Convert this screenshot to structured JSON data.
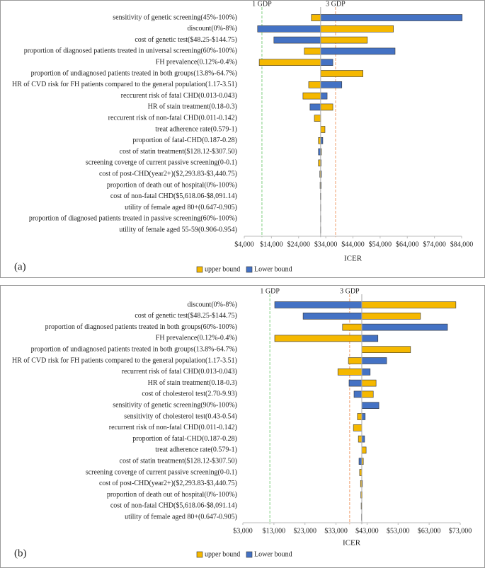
{
  "chart_data": [
    {
      "type": "tornado",
      "panel_label": "(a)",
      "xlabel": "ICER",
      "base_value": 32100,
      "categories": [
        "sensitivity of genetic screening(45%-100%)",
        "discount(0%-8%)",
        "cost of genetic test($48.25-$144.75)",
        "proportion of diagnosed patients treated in universal screening(60%-100%)",
        "FH prevalence(0.12%-0.4%)",
        "proportion of undiagnosed patients treated in both groups(13.8%-64.7%)",
        "HR of CVD risk for FH patients compared to the general population(1.17-3.51)",
        "reccurent risk of fatal CHD(0.013-0.043)",
        "HR of stain treatment(0.18-0.3)",
        "reccurent risk of non-fatal CHD(0.011-0.142)",
        "treat adherence rate(0.579-1)",
        "proportion of fatal-CHD(0.187-0.28)",
        "cost of statin treatment($128.12-$307.50)",
        "screening coverge of current passive screening(0-0.1)",
        "cost of post-CHD(year2+)($2,293.83-$3,440.75)",
        "proportion of death out of hospital(0%-100%)",
        "cost of non-fatal CHD($5,618.06-$8,091.14)",
        "utility of female aged 80+(0.647-0.905)",
        "proportion of diagnosed patients treated in passive screening(60%-100%)",
        "utility of female aged 55-59(0.906-0.954)"
      ],
      "series": [
        {
          "name": "upper bound",
          "color": "#f5b800",
          "values": [
            28700,
            58900,
            49300,
            26100,
            9500,
            47700,
            27700,
            25600,
            36600,
            29800,
            33700,
            31300,
            32400,
            31300,
            31800,
            31900,
            32000,
            32050,
            32050,
            32050
          ]
        },
        {
          "name": "Lower bound",
          "color": "#4472c4",
          "values": [
            84200,
            8900,
            14900,
            59500,
            36600,
            32100,
            39900,
            34500,
            28200,
            32100,
            32100,
            32900,
            31300,
            32300,
            32400,
            32300,
            32200,
            32150,
            32150,
            32150
          ]
        }
      ],
      "xlim": [
        4000,
        84000
      ],
      "xticks": [
        {
          "value": 4000,
          "label": "$4,000"
        },
        {
          "value": 14000,
          "label": "$14,000"
        },
        {
          "value": 24000,
          "label": "$24,000"
        },
        {
          "value": 34000,
          "label": "$34,000"
        },
        {
          "value": 44000,
          "label": "$44,000"
        },
        {
          "value": 54000,
          "label": "$54,000"
        },
        {
          "value": 64000,
          "label": "$64,000"
        },
        {
          "value": 74000,
          "label": "$74,000"
        },
        {
          "value": 84000,
          "label": "$84,000"
        }
      ],
      "reference_lines": [
        {
          "value": 10500,
          "label": "1 GDP",
          "color": "#7fcf7f"
        },
        {
          "value": 37600,
          "label": "3 GDP",
          "color": "#f0a070"
        }
      ]
    },
    {
      "type": "tornado",
      "panel_label": "(b)",
      "xlabel": "ICER",
      "base_value": 41300,
      "categories": [
        "discount(0%-8%)",
        "cost of genetic test($48.25-$144.75)",
        "proportion of diagnosed patients treated in both groups(60%-100%)",
        "FH prevalence(0.12%-0.4%)",
        "proportion of undiagnosed patients treated in both groups(13.8%-64.7%)",
        "HR of CVD risk for FH patients compared to the general population(1.17-3.51)",
        "recurrent risk of fatal CHD(0.013-0.043)",
        "HR of stain treatment(0.18-0.3)",
        "cost of cholesterol test(2.70-9.93)",
        "sensitivity of genetic screening(90%-100%)",
        "sensitivity of cholesterol test(0.43-0.54)",
        "recurrent risk of non-fatal CHD(0.011-0.142)",
        "proportion of fatal-CHD(0.187-0.28)",
        "treat adherence rate(0.579-1)",
        "cost of statin treatment($128.12-$307.50)",
        "screening coverge of current passive screening(0-0.1)",
        "cost of post-CHD(year2+)($2,293.83-$3,440.75)",
        "proportion of death out of hospital(0%-100%)",
        "cost of non-fatal CHD($5,618.06-$8,091.14)",
        "utility of female aged 80+(0.647-0.905)"
      ],
      "series": [
        {
          "name": "upper bound",
          "color": "#f5b800",
          "values": [
            71600,
            60200,
            35100,
            13260,
            57000,
            37000,
            33600,
            45900,
            45000,
            41300,
            39900,
            38600,
            40200,
            42700,
            41800,
            40600,
            40900,
            41000,
            41100,
            41200
          ]
        },
        {
          "name": "Lower bound",
          "color": "#4472c4",
          "values": [
            13260,
            22400,
            68900,
            46500,
            41300,
            49300,
            44000,
            37200,
            38800,
            46800,
            42400,
            41300,
            42200,
            41300,
            40400,
            41300,
            41500,
            41400,
            41350,
            41300
          ]
        }
      ],
      "xlim": [
        3000,
        73000
      ],
      "xticks": [
        {
          "value": 3000,
          "label": "$3,000"
        },
        {
          "value": 13000,
          "label": "$13,000"
        },
        {
          "value": 23000,
          "label": "$23,000"
        },
        {
          "value": 33000,
          "label": "$33,000"
        },
        {
          "value": 43000,
          "label": "$43,000"
        },
        {
          "value": 53000,
          "label": "$53,000"
        },
        {
          "value": 63000,
          "label": "$63,000"
        },
        {
          "value": 73000,
          "label": "$73,000"
        }
      ],
      "reference_lines": [
        {
          "value": 11700,
          "label": "1 GDP",
          "color": "#7fcf7f"
        },
        {
          "value": 37400,
          "label": "3 GDP",
          "color": "#f0a070"
        }
      ]
    }
  ]
}
